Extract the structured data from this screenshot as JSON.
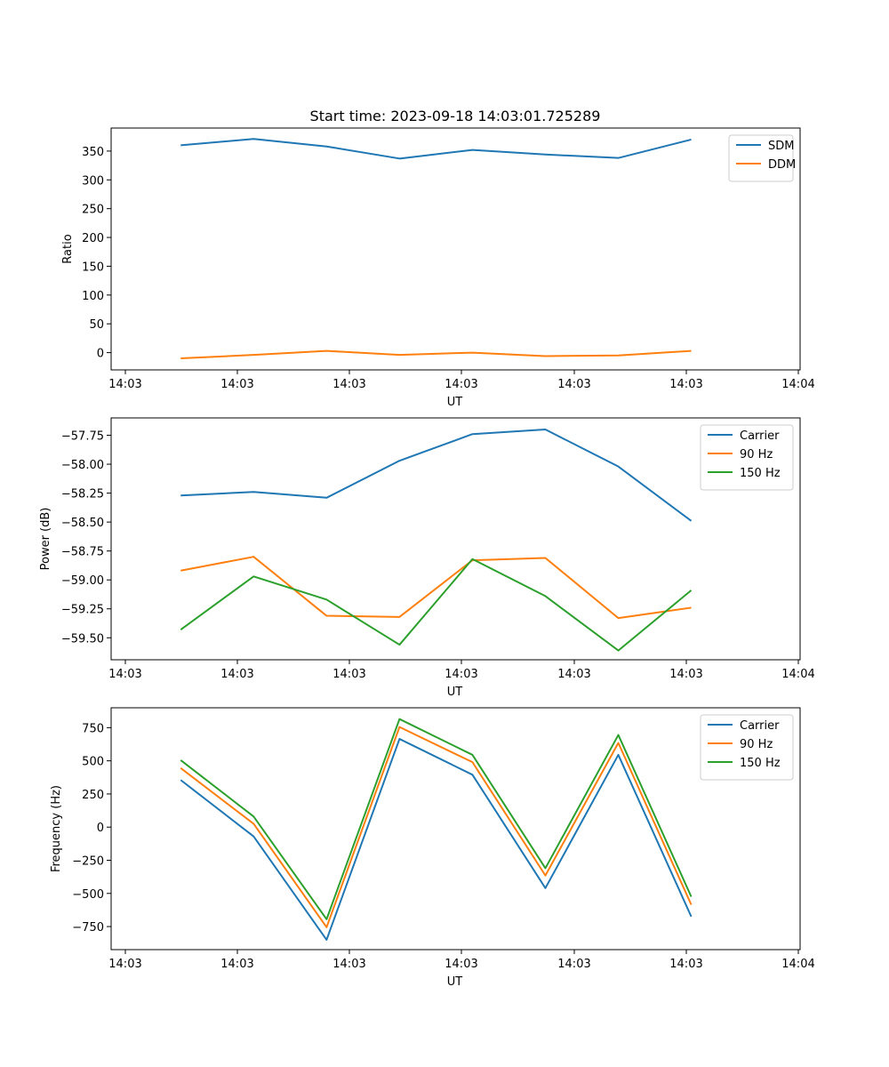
{
  "figure_title": "Start time: 2023-09-18 14:03:01.725289",
  "chart_data": [
    {
      "type": "line",
      "title": "Start time: 2023-09-18 14:03:01.725289",
      "xlabel": "UT",
      "ylabel": "Ratio",
      "x_ticklabels": [
        "14:03",
        "14:03",
        "14:03",
        "14:03",
        "14:03",
        "14:03",
        "14:04"
      ],
      "x_tick_values": [
        0,
        1,
        2,
        3,
        4,
        5,
        6
      ],
      "xlim": [
        -0.12,
        6.02
      ],
      "y_ticks": [
        0,
        50,
        100,
        150,
        200,
        250,
        300,
        350
      ],
      "y_ticklabels": [
        "0",
        "50",
        "100",
        "150",
        "200",
        "250",
        "300",
        "350"
      ],
      "ylim": [
        -30,
        390
      ],
      "x": [
        0.5,
        1.15,
        1.8,
        2.45,
        3.1,
        3.75,
        4.4,
        5.05
      ],
      "series": [
        {
          "name": "SDM",
          "color": "#1f77b4",
          "values": [
            360,
            371,
            358,
            337,
            352,
            344,
            338,
            370
          ]
        },
        {
          "name": "DDM",
          "color": "#ff7f0e",
          "values": [
            -10,
            -4,
            3,
            -4,
            0,
            -6,
            -5,
            3
          ]
        }
      ],
      "legend": "upper right"
    },
    {
      "type": "line",
      "title": "",
      "xlabel": "UT",
      "ylabel": "Power (dB)",
      "x_ticklabels": [
        "14:03",
        "14:03",
        "14:03",
        "14:03",
        "14:03",
        "14:03",
        "14:04"
      ],
      "x_tick_values": [
        0,
        1,
        2,
        3,
        4,
        5,
        6
      ],
      "xlim": [
        -0.12,
        6.02
      ],
      "y_ticks": [
        -59.5,
        -59.25,
        -59.0,
        -58.75,
        -58.5,
        -58.25,
        -58.0,
        -57.75
      ],
      "y_ticklabels": [
        "−59.50",
        "−59.25",
        "−59.00",
        "−58.75",
        "−58.50",
        "−58.25",
        "−58.00",
        "−57.75"
      ],
      "ylim": [
        -59.69,
        -57.6
      ],
      "x": [
        0.5,
        1.15,
        1.8,
        2.45,
        3.1,
        3.75,
        4.4,
        5.05
      ],
      "series": [
        {
          "name": "Carrier",
          "color": "#1f77b4",
          "values": [
            -58.27,
            -58.24,
            -58.29,
            -57.97,
            -57.74,
            -57.7,
            -58.02,
            -58.49
          ]
        },
        {
          "name": "90 Hz",
          "color": "#ff7f0e",
          "values": [
            -58.92,
            -58.8,
            -59.31,
            -59.32,
            -58.83,
            -58.81,
            -59.33,
            -59.24
          ]
        },
        {
          "name": "150 Hz",
          "color": "#2ca02c",
          "values": [
            -59.43,
            -58.97,
            -59.17,
            -59.56,
            -58.82,
            -59.14,
            -59.61,
            -59.09
          ]
        }
      ],
      "legend": "upper right"
    },
    {
      "type": "line",
      "title": "",
      "xlabel": "UT",
      "ylabel": "Frequency (Hz)",
      "x_ticklabels": [
        "14:03",
        "14:03",
        "14:03",
        "14:03",
        "14:03",
        "14:03",
        "14:04"
      ],
      "x_tick_values": [
        0,
        1,
        2,
        3,
        4,
        5,
        6
      ],
      "xlim": [
        -0.12,
        6.02
      ],
      "y_ticks": [
        -750,
        -500,
        -250,
        0,
        250,
        500,
        750
      ],
      "y_ticklabels": [
        "−750",
        "−500",
        "−250",
        "0",
        "250",
        "500",
        "750"
      ],
      "ylim": [
        -924,
        900
      ],
      "x": [
        0.5,
        1.15,
        1.8,
        2.45,
        3.1,
        3.75,
        4.4,
        5.05
      ],
      "series": [
        {
          "name": "Carrier",
          "color": "#1f77b4",
          "values": [
            355,
            -70,
            -850,
            665,
            395,
            -460,
            545,
            -675
          ]
        },
        {
          "name": "90 Hz",
          "color": "#ff7f0e",
          "values": [
            445,
            25,
            -755,
            755,
            490,
            -365,
            635,
            -585
          ]
        },
        {
          "name": "150 Hz",
          "color": "#2ca02c",
          "values": [
            505,
            80,
            -695,
            815,
            545,
            -310,
            695,
            -525
          ]
        }
      ],
      "legend": "upper right"
    }
  ]
}
